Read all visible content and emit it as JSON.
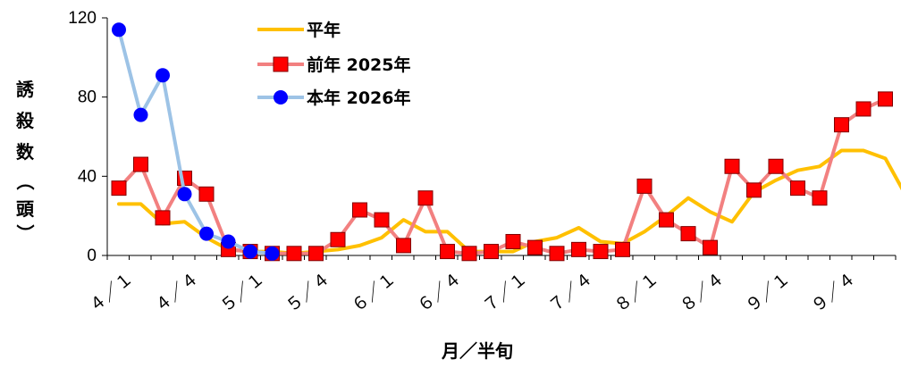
{
  "chart_data": {
    "type": "line",
    "xlabel": "月／半旬",
    "ylabel_chars": [
      "誘",
      "殺",
      "数",
      "（",
      "頭",
      "）"
    ],
    "ylim": [
      0,
      120
    ],
    "yticks": [
      0,
      40,
      80,
      120
    ],
    "xtick_labels": [
      "４／１",
      "４／４",
      "５／１",
      "５／４",
      "６／１",
      "６／４",
      "７／１",
      "７／４",
      "８／１",
      "８／４",
      "９／１",
      "９／４"
    ],
    "legend_position": "top-center",
    "series": [
      {
        "name": "平年",
        "color": "#FFC000",
        "marker": "none",
        "values": [
          26,
          26,
          16,
          17,
          9,
          3,
          2,
          2,
          1,
          2,
          3,
          5,
          9,
          18,
          12,
          12,
          2,
          2,
          2,
          7,
          9,
          14,
          7,
          6,
          12,
          20,
          29,
          22,
          17,
          32,
          38,
          43,
          45,
          53,
          53,
          49,
          29
        ]
      },
      {
        "name": "前年 2025年",
        "color": "#F28080",
        "marker": "square",
        "marker_color": "#FF0000",
        "values": [
          34,
          46,
          19,
          39,
          31,
          3,
          2,
          1,
          1,
          1,
          8,
          23,
          18,
          5,
          29,
          2,
          1,
          2,
          7,
          4,
          1,
          3,
          2,
          3,
          35,
          18,
          11,
          4,
          45,
          33,
          45,
          34,
          29,
          66,
          74,
          79,
          null
        ]
      },
      {
        "name": "本年 2026年",
        "color": "#9DC3E6",
        "marker": "circle",
        "marker_color": "#0000FF",
        "values": [
          114,
          71,
          91,
          31,
          11,
          7,
          2,
          1,
          null,
          null,
          null,
          null,
          null,
          null,
          null,
          null,
          null,
          null,
          null,
          null,
          null,
          null,
          null,
          null,
          null,
          null,
          null,
          null,
          null,
          null,
          null,
          null,
          null,
          null,
          null,
          null,
          null
        ]
      }
    ]
  }
}
